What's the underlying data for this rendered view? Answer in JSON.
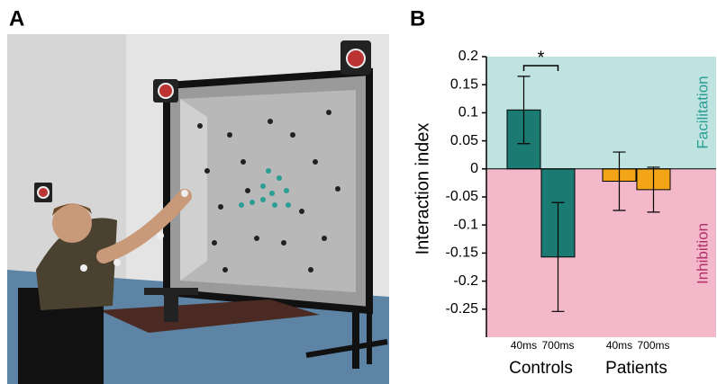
{
  "panels": {
    "a_label": "A",
    "b_label": "B"
  },
  "chart_data": {
    "type": "bar",
    "y_label": "Interaction index",
    "ylim": [
      -0.3,
      0.2
    ],
    "yticks": [
      0.2,
      0.15,
      0.1,
      0.05,
      0,
      -0.05,
      -0.1,
      -0.15,
      -0.2,
      -0.25
    ],
    "regions": {
      "positive_color": "#bfe3e0",
      "negative_color": "#f4b8cb"
    },
    "annotations": {
      "significance": "*",
      "facilitation": "Facilitation",
      "facilitation_color": "#2a9d95",
      "inhibition": "Inhibition",
      "inhibition_color": "#b0306a"
    },
    "groups": [
      {
        "label": "Controls",
        "color": "#1b7a72",
        "bars": [
          {
            "label": "40ms",
            "value": 0.105,
            "error": 0.06
          },
          {
            "label": "700ms",
            "value": -0.157,
            "error": 0.097
          }
        ]
      },
      {
        "label": "Patients",
        "color": "#f2a516",
        "bars": [
          {
            "label": "40ms",
            "value": -0.022,
            "error": 0.052
          },
          {
            "label": "700ms",
            "value": -0.037,
            "error": 0.04
          }
        ]
      }
    ]
  }
}
